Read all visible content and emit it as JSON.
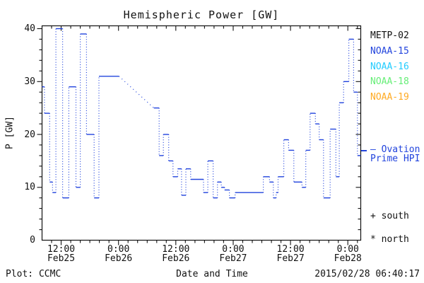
{
  "title": "Hemispheric Power [GW]",
  "y_axis": {
    "label": "P [GW]",
    "tick_values": [
      40,
      30,
      20,
      10,
      0
    ],
    "minor_step": 2,
    "min": 0,
    "max": 40
  },
  "x_axis": {
    "label": "Date and Time",
    "t_min": 0,
    "t_max": 66.7,
    "minor_step_hours": 2,
    "major_ticks": [
      {
        "t": 4,
        "time": "12:00",
        "date": "Feb25"
      },
      {
        "t": 16,
        "time": "0:00",
        "date": "Feb26"
      },
      {
        "t": 28,
        "time": "12:00",
        "date": "Feb26"
      },
      {
        "t": 40,
        "time": "0:00",
        "date": "Feb27"
      },
      {
        "t": 52,
        "time": "12:00",
        "date": "Feb27"
      },
      {
        "t": 64,
        "time": "0:00",
        "date": "Feb28"
      }
    ]
  },
  "legend": {
    "satellites": [
      {
        "name": "METP-02",
        "color": "#111111"
      },
      {
        "name": "NOAA-15",
        "color": "#2244dd"
      },
      {
        "name": "NOAA-16",
        "color": "#22ccff"
      },
      {
        "name": "NOAA-18",
        "color": "#66ee77"
      },
      {
        "name": "NOAA-19",
        "color": "#ffaa22"
      }
    ],
    "model": {
      "line1": "— Ovation",
      "line2": "Prime HPI",
      "color": "#2244dd"
    }
  },
  "annotations": {
    "south": "+ south",
    "north": "* north"
  },
  "footer": {
    "credit": "Plot: CCMC",
    "timestamp": "2015/02/28 06:40:17"
  },
  "chart_data": {
    "type": "line",
    "line_style": "dotted-steps",
    "color": "#2244dd",
    "title": "Hemispheric Power [GW]",
    "xlabel": "Date and Time",
    "ylabel": "P [GW]",
    "x_unit": "hours since 2015-02-25 08:00 UT",
    "xlim_hours": [
      0,
      66.7
    ],
    "ylim": [
      0,
      40
    ],
    "grid": false,
    "legend_position": "right-outside",
    "steps_t_v": [
      [
        0,
        29
      ],
      [
        0.5,
        24
      ],
      [
        1.6,
        11
      ],
      [
        2.2,
        9
      ],
      [
        2.9,
        40
      ],
      [
        4.3,
        8
      ],
      [
        5.6,
        29
      ],
      [
        7.1,
        10
      ],
      [
        8,
        39
      ],
      [
        9.3,
        20
      ],
      [
        10.9,
        8
      ],
      [
        11.9,
        31
      ],
      [
        23.4,
        25
      ],
      [
        24.5,
        16
      ],
      [
        25.4,
        20
      ],
      [
        26.5,
        15
      ],
      [
        27.4,
        12
      ],
      [
        28.4,
        13.5
      ],
      [
        29.2,
        8.5
      ],
      [
        30.1,
        13.5
      ],
      [
        31.1,
        11.5
      ],
      [
        33.8,
        9
      ],
      [
        34.7,
        15
      ],
      [
        35.8,
        8
      ],
      [
        36.7,
        11
      ],
      [
        37.5,
        10
      ],
      [
        38.2,
        9.5
      ],
      [
        39.2,
        8
      ],
      [
        40.4,
        9
      ],
      [
        46.3,
        12
      ],
      [
        47.6,
        11
      ],
      [
        48.4,
        8
      ],
      [
        49,
        9
      ],
      [
        49.4,
        12
      ],
      [
        50.6,
        19
      ],
      [
        51.6,
        17
      ],
      [
        52.7,
        11
      ],
      [
        54.4,
        10
      ],
      [
        55.2,
        17
      ],
      [
        56.1,
        24
      ],
      [
        57.2,
        22
      ],
      [
        58,
        19
      ],
      [
        58.9,
        8
      ],
      [
        60.3,
        21
      ],
      [
        61.5,
        12
      ],
      [
        62.2,
        26
      ],
      [
        63.1,
        30
      ],
      [
        64.2,
        38
      ],
      [
        65.2,
        28
      ],
      [
        66,
        16
      ]
    ],
    "data_gap_diagonal": {
      "from_t": 16.1,
      "from_v": 31,
      "to_t": 23.4,
      "to_v": 25
    },
    "end_t": 66.7
  }
}
